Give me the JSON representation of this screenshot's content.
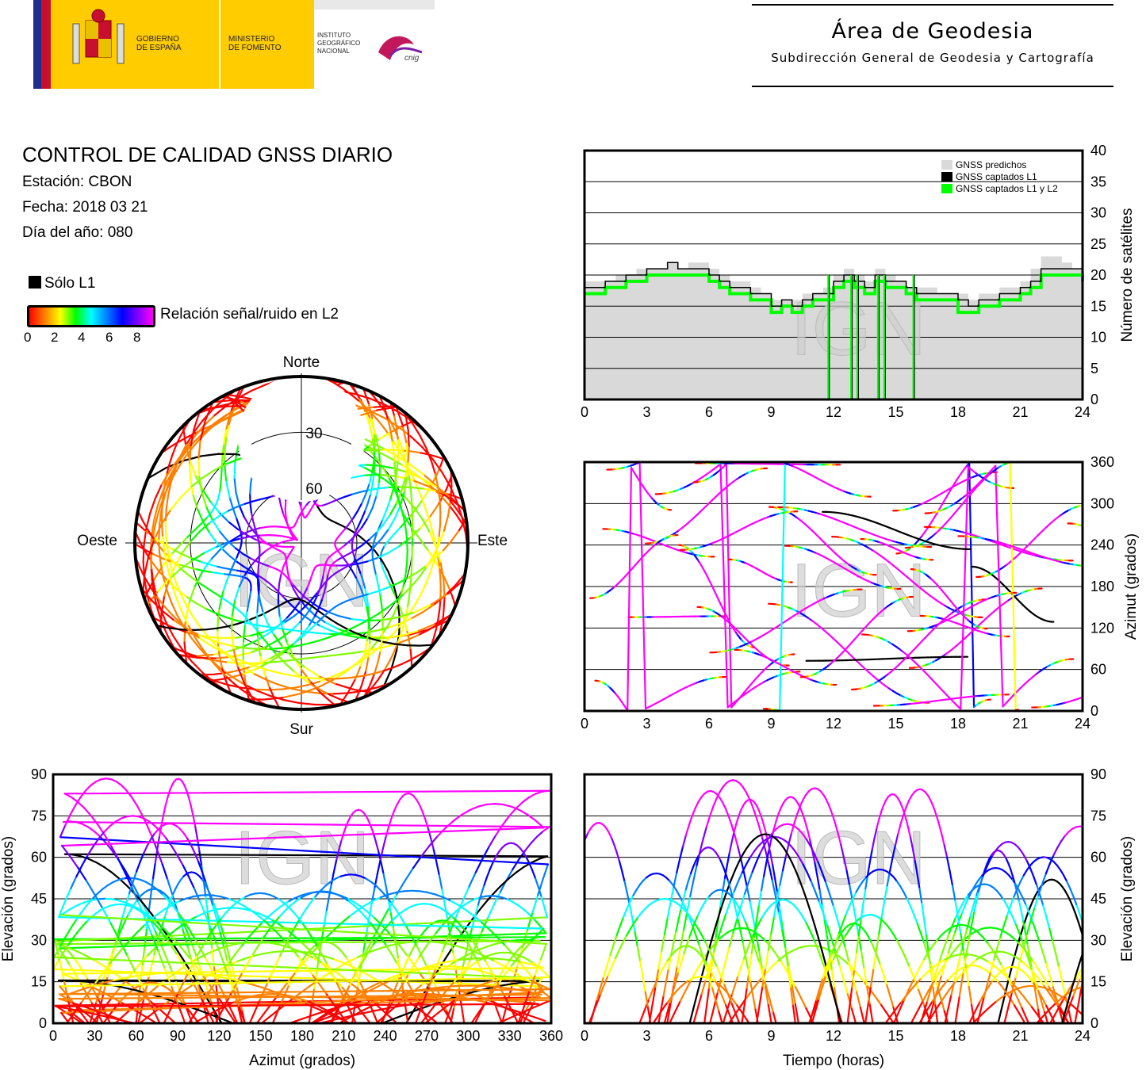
{
  "header": {
    "gobierno": "GOBIERNO\nDE ESPAÑA",
    "ministerio": "MINISTERIO\nDE FOMENTO",
    "instituto": "INSTITUTO\nGEOGRÁFICO\nNACIONAL",
    "cnig": "cnig",
    "area_title": "Área de Geodesia",
    "area_subtitle": "Subdirección General de Geodesia y Cartografía"
  },
  "info": {
    "title": "CONTROL DE CALIDAD GNSS DIARIO",
    "station": "Estación: CBON",
    "date": "Fecha: 2018 03 21",
    "doy": "Día del año: 080"
  },
  "legend": {
    "solo_l1": "Sólo L1",
    "snr_label": "Relación señal/ruido en L2",
    "snr_ticks": [
      "0",
      "2",
      "4",
      "6",
      "8"
    ]
  },
  "watermark": "IGN",
  "colors": {
    "predicted": "#d9d9d9",
    "l1": "#000000",
    "l1l2": "#00ff00",
    "frame": "#000000"
  },
  "chart_data": [
    {
      "id": "skyplot",
      "type": "scatter",
      "directions": {
        "north": "Norte",
        "south": "Sur",
        "east": "Este",
        "west": "Oeste"
      },
      "elevation_rings": [
        "30",
        "60"
      ],
      "description_tracks": 24
    },
    {
      "id": "satellites",
      "type": "line",
      "ylabel": "Número de satélites",
      "xlim": [
        0,
        24
      ],
      "ylim": [
        0,
        40
      ],
      "xticks": [
        "0",
        "3",
        "6",
        "9",
        "12",
        "15",
        "18",
        "21",
        "24"
      ],
      "yticks": [
        "0",
        "5",
        "10",
        "15",
        "20",
        "25",
        "30",
        "35",
        "40"
      ],
      "legend": [
        "GNSS predichos",
        "GNSS captados L1",
        "GNSS captados L1 y L2"
      ],
      "x": [
        0,
        0.5,
        1,
        1.5,
        2,
        2.5,
        3,
        3.5,
        4,
        4.5,
        5,
        5.5,
        6,
        6.5,
        7,
        7.5,
        8,
        8.5,
        9,
        9.5,
        10,
        10.5,
        11,
        11.5,
        12,
        12.5,
        13,
        13.5,
        14,
        14.5,
        15,
        15.5,
        16,
        16.5,
        17,
        17.5,
        18,
        18.5,
        19,
        19.5,
        20,
        20.5,
        21,
        21.5,
        22,
        22.5,
        23,
        23.5,
        24
      ],
      "predicted": [
        19,
        19,
        19,
        20,
        20,
        21,
        21,
        21,
        22,
        21,
        22,
        22,
        21,
        20,
        19,
        19,
        18,
        17,
        16,
        16,
        16,
        17,
        17,
        18,
        20,
        21,
        20,
        19,
        21,
        20,
        19,
        18,
        18,
        18,
        17,
        17,
        17,
        16,
        17,
        17,
        18,
        18,
        19,
        21,
        23,
        23,
        22,
        21,
        20
      ],
      "l1": [
        18,
        18,
        19,
        19,
        20,
        20,
        21,
        21,
        22,
        21,
        21,
        21,
        20,
        19,
        18,
        18,
        17,
        17,
        15,
        16,
        15,
        16,
        17,
        17,
        19,
        20,
        19,
        18,
        20,
        19,
        19,
        18,
        17,
        17,
        17,
        17,
        16,
        15,
        16,
        16,
        17,
        17,
        18,
        19,
        21,
        21,
        21,
        21,
        20
      ],
      "l1l2": [
        17,
        17,
        18,
        18,
        19,
        19,
        20,
        20,
        20,
        20,
        20,
        20,
        19,
        18,
        17,
        17,
        16,
        16,
        14,
        15,
        14,
        15,
        16,
        16,
        18,
        19,
        18,
        17,
        19,
        18,
        18,
        17,
        16,
        16,
        16,
        16,
        14,
        14,
        15,
        15,
        16,
        16,
        17,
        18,
        20,
        20,
        20,
        20,
        19
      ],
      "gaps": [
        11.8,
        12.9,
        13.2,
        14.2,
        14.5,
        15.9
      ]
    },
    {
      "id": "azimuth_time",
      "type": "scatter",
      "ylabel": "Azimut (grados)",
      "xlim": [
        0,
        24
      ],
      "ylim": [
        0,
        360
      ],
      "xticks": [
        "0",
        "3",
        "6",
        "9",
        "12",
        "15",
        "18",
        "21",
        "24"
      ],
      "yticks": [
        "0",
        "60",
        "120",
        "180",
        "240",
        "300",
        "360"
      ]
    },
    {
      "id": "elevation_azimuth",
      "type": "scatter",
      "xlabel": "Azimut (grados)",
      "ylabel": "Elevación (grados)",
      "xlim": [
        0,
        360
      ],
      "ylim": [
        0,
        90
      ],
      "xticks": [
        "0",
        "30",
        "60",
        "90",
        "120",
        "150",
        "180",
        "210",
        "240",
        "270",
        "300",
        "330",
        "360"
      ],
      "yticks": [
        "0",
        "15",
        "30",
        "45",
        "60",
        "75",
        "90"
      ]
    },
    {
      "id": "elevation_time",
      "type": "scatter",
      "xlabel": "Tiempo (horas)",
      "ylabel": "Elevación (grados)",
      "xlim": [
        0,
        24
      ],
      "ylim": [
        0,
        90
      ],
      "xticks": [
        "0",
        "3",
        "6",
        "9",
        "12",
        "15",
        "18",
        "21",
        "24"
      ],
      "yticks": [
        "0",
        "15",
        "30",
        "45",
        "60",
        "75",
        "90"
      ]
    }
  ]
}
